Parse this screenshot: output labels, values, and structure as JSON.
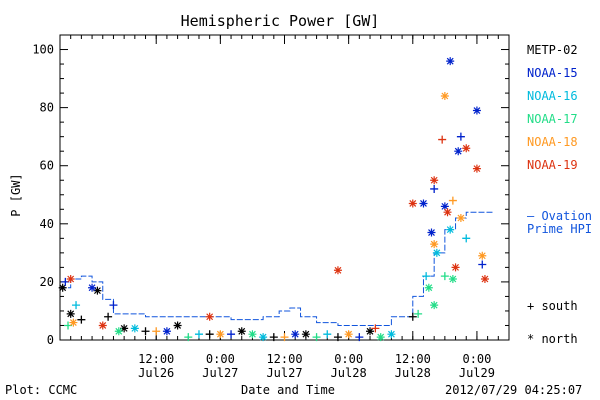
{
  "chart_data": {
    "type": "scatter",
    "title": "Hemispheric Power [GW]",
    "ylabel": "P [GW]",
    "xlabel": "Date and Time",
    "ylim": [
      0,
      105
    ],
    "xlim": [
      "2012-07-25 18:00",
      "2012-07-29 06:00"
    ],
    "grid": false,
    "y_ticks": [
      0,
      20,
      40,
      60,
      80,
      100
    ],
    "x_ticks": [
      {
        "at": "2012-07-26 12:00",
        "time": "12:00",
        "date": "Jul26"
      },
      {
        "at": "2012-07-27 00:00",
        "time": "0:00",
        "date": "Jul27"
      },
      {
        "at": "2012-07-27 12:00",
        "time": "12:00",
        "date": "Jul27"
      },
      {
        "at": "2012-07-28 00:00",
        "time": "0:00",
        "date": "Jul28"
      },
      {
        "at": "2012-07-28 12:00",
        "time": "12:00",
        "date": "Jul28"
      },
      {
        "at": "2012-07-29 00:00",
        "time": "0:00",
        "date": "Jul29"
      }
    ],
    "series": [
      {
        "name": "METP-02",
        "color": "#000000",
        "points": [
          {
            "x": "2012-07-25 18:30",
            "y": 18,
            "m": "north"
          },
          {
            "x": "2012-07-25 20:00",
            "y": 9,
            "m": "north"
          },
          {
            "x": "2012-07-25 22:00",
            "y": 7,
            "m": "south"
          },
          {
            "x": "2012-07-26 01:00",
            "y": 17,
            "m": "north"
          },
          {
            "x": "2012-07-26 03:00",
            "y": 8,
            "m": "south"
          },
          {
            "x": "2012-07-26 06:00",
            "y": 4,
            "m": "north"
          },
          {
            "x": "2012-07-26 10:00",
            "y": 3,
            "m": "south"
          },
          {
            "x": "2012-07-26 16:00",
            "y": 5,
            "m": "north"
          },
          {
            "x": "2012-07-26 22:00",
            "y": 2,
            "m": "south"
          },
          {
            "x": "2012-07-27 04:00",
            "y": 3,
            "m": "north"
          },
          {
            "x": "2012-07-27 10:00",
            "y": 1,
            "m": "south"
          },
          {
            "x": "2012-07-27 16:00",
            "y": 2,
            "m": "north"
          },
          {
            "x": "2012-07-27 22:00",
            "y": 1,
            "m": "south"
          },
          {
            "x": "2012-07-28 04:00",
            "y": 3,
            "m": "north"
          },
          {
            "x": "2012-07-28 12:00",
            "y": 8,
            "m": "south"
          }
        ]
      },
      {
        "name": "NOAA-15",
        "color": "#0022cc",
        "points": [
          {
            "x": "2012-07-25 19:00",
            "y": 20,
            "m": "south"
          },
          {
            "x": "2012-07-26 00:00",
            "y": 18,
            "m": "north"
          },
          {
            "x": "2012-07-26 04:00",
            "y": 12,
            "m": "south"
          },
          {
            "x": "2012-07-26 14:00",
            "y": 3,
            "m": "north"
          },
          {
            "x": "2012-07-27 02:00",
            "y": 2,
            "m": "south"
          },
          {
            "x": "2012-07-27 14:00",
            "y": 2,
            "m": "north"
          },
          {
            "x": "2012-07-28 02:00",
            "y": 1,
            "m": "south"
          },
          {
            "x": "2012-07-28 14:00",
            "y": 47,
            "m": "north"
          },
          {
            "x": "2012-07-28 15:30",
            "y": 37,
            "m": "north"
          },
          {
            "x": "2012-07-28 16:00",
            "y": 52,
            "m": "south"
          },
          {
            "x": "2012-07-28 18:00",
            "y": 46,
            "m": "north"
          },
          {
            "x": "2012-07-28 19:00",
            "y": 96,
            "m": "north"
          },
          {
            "x": "2012-07-28 20:30",
            "y": 65,
            "m": "north"
          },
          {
            "x": "2012-07-28 21:00",
            "y": 70,
            "m": "south"
          },
          {
            "x": "2012-07-29 00:00",
            "y": 79,
            "m": "north"
          },
          {
            "x": "2012-07-29 01:00",
            "y": 26,
            "m": "south"
          }
        ]
      },
      {
        "name": "NOAA-16",
        "color": "#00bbdd",
        "points": [
          {
            "x": "2012-07-25 21:00",
            "y": 12,
            "m": "south"
          },
          {
            "x": "2012-07-26 08:00",
            "y": 4,
            "m": "north"
          },
          {
            "x": "2012-07-26 20:00",
            "y": 2,
            "m": "south"
          },
          {
            "x": "2012-07-27 08:00",
            "y": 1,
            "m": "north"
          },
          {
            "x": "2012-07-27 20:00",
            "y": 2,
            "m": "south"
          },
          {
            "x": "2012-07-28 08:00",
            "y": 2,
            "m": "north"
          },
          {
            "x": "2012-07-28 14:30",
            "y": 22,
            "m": "south"
          },
          {
            "x": "2012-07-28 16:30",
            "y": 30,
            "m": "north"
          },
          {
            "x": "2012-07-28 19:00",
            "y": 38,
            "m": "north"
          },
          {
            "x": "2012-07-28 22:00",
            "y": 35,
            "m": "south"
          }
        ]
      },
      {
        "name": "NOAA-17",
        "color": "#22dd88",
        "points": [
          {
            "x": "2012-07-25 19:30",
            "y": 5,
            "m": "south"
          },
          {
            "x": "2012-07-26 05:00",
            "y": 3,
            "m": "north"
          },
          {
            "x": "2012-07-26 18:00",
            "y": 1,
            "m": "south"
          },
          {
            "x": "2012-07-27 06:00",
            "y": 2,
            "m": "north"
          },
          {
            "x": "2012-07-27 18:00",
            "y": 1,
            "m": "south"
          },
          {
            "x": "2012-07-28 06:00",
            "y": 1,
            "m": "north"
          },
          {
            "x": "2012-07-28 13:00",
            "y": 9,
            "m": "south"
          },
          {
            "x": "2012-07-28 15:00",
            "y": 18,
            "m": "north"
          },
          {
            "x": "2012-07-28 16:00",
            "y": 12,
            "m": "north"
          },
          {
            "x": "2012-07-28 18:00",
            "y": 22,
            "m": "south"
          },
          {
            "x": "2012-07-28 19:30",
            "y": 21,
            "m": "north"
          }
        ]
      },
      {
        "name": "NOAA-18",
        "color": "#ff9922",
        "points": [
          {
            "x": "2012-07-25 20:30",
            "y": 6,
            "m": "north"
          },
          {
            "x": "2012-07-26 12:00",
            "y": 3,
            "m": "south"
          },
          {
            "x": "2012-07-27 00:00",
            "y": 2,
            "m": "north"
          },
          {
            "x": "2012-07-27 12:00",
            "y": 1,
            "m": "south"
          },
          {
            "x": "2012-07-28 00:00",
            "y": 2,
            "m": "north"
          },
          {
            "x": "2012-07-28 16:00",
            "y": 33,
            "m": "north"
          },
          {
            "x": "2012-07-28 18:00",
            "y": 84,
            "m": "north"
          },
          {
            "x": "2012-07-28 19:30",
            "y": 48,
            "m": "south"
          },
          {
            "x": "2012-07-28 21:00",
            "y": 42,
            "m": "north"
          },
          {
            "x": "2012-07-29 01:00",
            "y": 29,
            "m": "north"
          }
        ]
      },
      {
        "name": "NOAA-19",
        "color": "#dd3311",
        "points": [
          {
            "x": "2012-07-25 20:00",
            "y": 21,
            "m": "north"
          },
          {
            "x": "2012-07-26 02:00",
            "y": 5,
            "m": "north"
          },
          {
            "x": "2012-07-26 22:00",
            "y": 8,
            "m": "north"
          },
          {
            "x": "2012-07-27 22:00",
            "y": 24,
            "m": "north"
          },
          {
            "x": "2012-07-28 05:00",
            "y": 4,
            "m": "south"
          },
          {
            "x": "2012-07-28 12:00",
            "y": 47,
            "m": "north"
          },
          {
            "x": "2012-07-28 16:00",
            "y": 55,
            "m": "north"
          },
          {
            "x": "2012-07-28 17:30",
            "y": 69,
            "m": "south"
          },
          {
            "x": "2012-07-28 18:30",
            "y": 44,
            "m": "north"
          },
          {
            "x": "2012-07-28 20:00",
            "y": 25,
            "m": "north"
          },
          {
            "x": "2012-07-28 22:00",
            "y": 66,
            "m": "north"
          },
          {
            "x": "2012-07-29 00:00",
            "y": 59,
            "m": "north"
          },
          {
            "x": "2012-07-29 01:30",
            "y": 21,
            "m": "north"
          }
        ]
      }
    ],
    "ovation": {
      "label_line1": "— Ovation",
      "label_line2": "Prime HPI",
      "color": "#1155dd",
      "points": [
        {
          "x": "2012-07-25 18:00",
          "y": 18
        },
        {
          "x": "2012-07-25 20:00",
          "y": 21
        },
        {
          "x": "2012-07-25 22:00",
          "y": 22
        },
        {
          "x": "2012-07-26 00:00",
          "y": 20
        },
        {
          "x": "2012-07-26 02:00",
          "y": 14
        },
        {
          "x": "2012-07-26 04:00",
          "y": 9
        },
        {
          "x": "2012-07-26 10:00",
          "y": 8
        },
        {
          "x": "2012-07-26 20:00",
          "y": 8
        },
        {
          "x": "2012-07-27 02:00",
          "y": 7
        },
        {
          "x": "2012-07-27 08:00",
          "y": 8
        },
        {
          "x": "2012-07-27 11:00",
          "y": 10
        },
        {
          "x": "2012-07-27 13:00",
          "y": 11
        },
        {
          "x": "2012-07-27 15:00",
          "y": 8
        },
        {
          "x": "2012-07-27 18:00",
          "y": 6
        },
        {
          "x": "2012-07-27 22:00",
          "y": 5
        },
        {
          "x": "2012-07-28 04:00",
          "y": 5
        },
        {
          "x": "2012-07-28 08:00",
          "y": 8
        },
        {
          "x": "2012-07-28 12:00",
          "y": 15
        },
        {
          "x": "2012-07-28 14:00",
          "y": 22
        },
        {
          "x": "2012-07-28 16:00",
          "y": 30
        },
        {
          "x": "2012-07-28 18:00",
          "y": 38
        },
        {
          "x": "2012-07-28 20:00",
          "y": 42
        },
        {
          "x": "2012-07-28 22:00",
          "y": 44
        },
        {
          "x": "2012-07-29 00:00",
          "y": 44
        },
        {
          "x": "2012-07-29 03:00",
          "y": 44
        }
      ]
    },
    "marker_legend": {
      "south": "+ south",
      "north": "* north"
    }
  },
  "footer": {
    "plot_credit": "Plot: CCMC",
    "timestamp": "2012/07/29 04:25:07"
  }
}
